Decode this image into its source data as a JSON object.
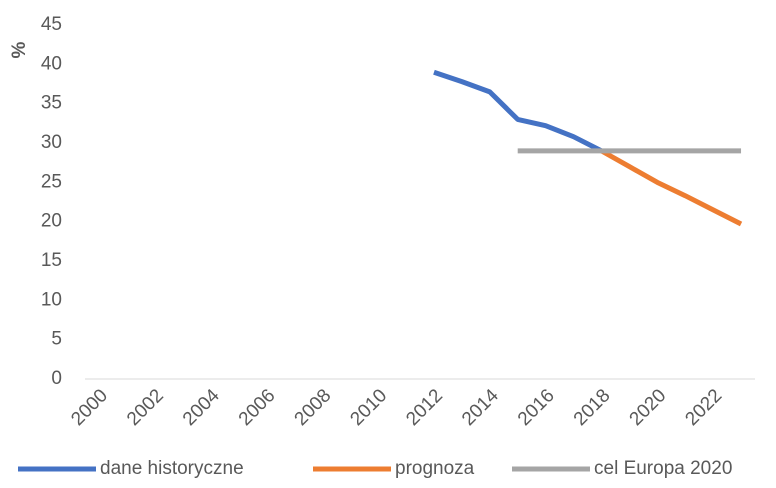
{
  "chart_data": {
    "type": "line",
    "ylabel": "%",
    "categories": [
      2000,
      null,
      2002,
      null,
      2004,
      null,
      2006,
      null,
      2008,
      null,
      2010,
      null,
      2012,
      null,
      2014,
      null,
      2016,
      null,
      2018,
      null,
      2020,
      null,
      2022,
      null
    ],
    "series": [
      {
        "name": "dane historyczne",
        "color": "#4472c4",
        "values": [
          null,
          null,
          null,
          null,
          null,
          null,
          null,
          null,
          null,
          null,
          null,
          null,
          39,
          37.8,
          36.5,
          33,
          32.2,
          30.8,
          29,
          null,
          null,
          null,
          null,
          null
        ]
      },
      {
        "name": "prognoza",
        "color": "#ed7d31",
        "values": [
          null,
          null,
          null,
          null,
          null,
          null,
          null,
          null,
          null,
          null,
          null,
          null,
          null,
          null,
          null,
          null,
          null,
          null,
          29,
          27,
          25,
          23.3,
          21.5,
          19.7
        ]
      },
      {
        "name": "cel Europa 2020",
        "color": "#a5a5a5",
        "values": [
          null,
          null,
          null,
          null,
          null,
          null,
          null,
          null,
          null,
          null,
          null,
          null,
          null,
          null,
          null,
          29,
          29,
          29,
          29,
          29,
          29,
          29,
          29,
          29
        ]
      }
    ],
    "ylim": [
      0,
      45
    ],
    "yticks": [
      0,
      5,
      10,
      15,
      20,
      25,
      30,
      35,
      40,
      45
    ],
    "legend": "bottom"
  }
}
